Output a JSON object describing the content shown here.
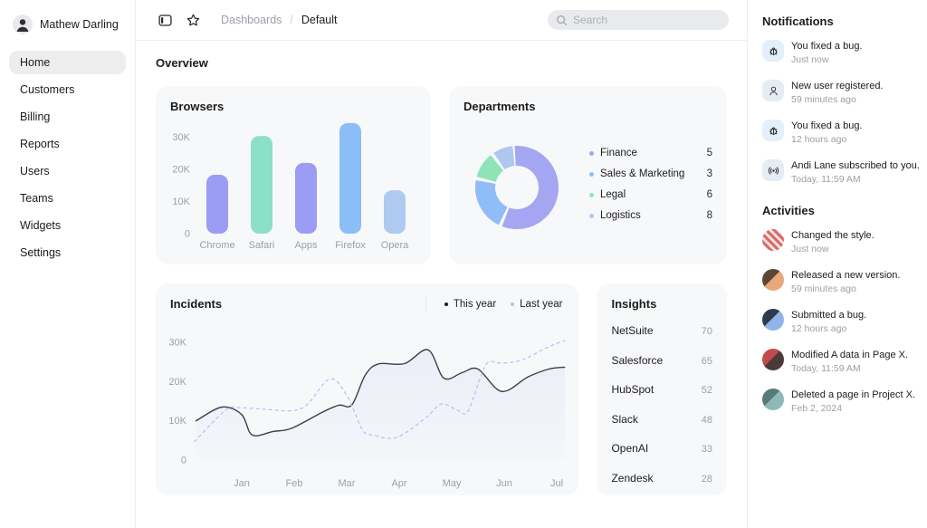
{
  "colors": {
    "card_bg": "#f7f8fa",
    "border": "#ececec",
    "text": "#1c1c1c",
    "muted": "#9aa0a8",
    "purple": "#9b9cf4",
    "mint": "#8be0c7",
    "blue": "#8bbdf6",
    "periwinkle": "#aecaf1"
  },
  "sidebar": {
    "user": {
      "name": "Mathew Darling"
    },
    "items": [
      {
        "label": "Home",
        "active": true
      },
      {
        "label": "Customers",
        "active": false
      },
      {
        "label": "Billing",
        "active": false
      },
      {
        "label": "Reports",
        "active": false
      },
      {
        "label": "Users",
        "active": false
      },
      {
        "label": "Teams",
        "active": false
      },
      {
        "label": "Widgets",
        "active": false
      },
      {
        "label": "Settings",
        "active": false
      }
    ]
  },
  "topbar": {
    "icons": [
      "sidebar-toggle-icon",
      "star-icon"
    ],
    "breadcrumb": {
      "parent": "Dashboards",
      "separator": "/",
      "current": "Default"
    },
    "search": {
      "placeholder": "Search",
      "icon": "search-icon"
    }
  },
  "overview_title": "Overview",
  "chart_data": [
    {
      "id": "browsers",
      "type": "bar",
      "title": "Browsers",
      "categories": [
        "Chrome",
        "Safari",
        "Apps",
        "Firefox",
        "Opera"
      ],
      "values": [
        18300,
        30400,
        22000,
        34400,
        13500
      ],
      "bar_colors": [
        "#9b9cf4",
        "#8be0c7",
        "#9b9cf4",
        "#8bbdf6",
        "#aecaf1"
      ],
      "yticks": [
        {
          "v": 0,
          "label": "0"
        },
        {
          "v": 10000,
          "label": "10K"
        },
        {
          "v": 20000,
          "label": "20K"
        },
        {
          "v": 30000,
          "label": "30K"
        }
      ],
      "ylim": [
        0,
        36000
      ],
      "grid": false,
      "xlabel": "",
      "ylabel": ""
    },
    {
      "id": "departments",
      "type": "donut",
      "title": "Departments",
      "slices": [
        {
          "label": "Finance",
          "value": 5,
          "color": "#a5a6f2",
          "start": -3,
          "sweep": 204
        },
        {
          "label": "Sales & Marketing",
          "value": 3,
          "color": "#90bdf8",
          "start": 206,
          "sweep": 74
        },
        {
          "label": "Legal",
          "value": 6,
          "color": "#8fe4b7",
          "start": 285,
          "sweep": 36
        },
        {
          "label": "Logistics",
          "value": 8,
          "color": "#aec7ee",
          "start": 326,
          "sweep": 28
        }
      ],
      "legend_position": "right"
    },
    {
      "id": "incidents",
      "type": "line",
      "title": "Incidents",
      "x_ticks": [
        "Jan",
        "Feb",
        "Mar",
        "Apr",
        "May",
        "Jun",
        "Jul"
      ],
      "x_domain": [
        0,
        7.15
      ],
      "yticks": [
        {
          "v": 0,
          "label": "0"
        },
        {
          "v": 10,
          "label": "10K"
        },
        {
          "v": 20,
          "label": "20K"
        },
        {
          "v": 30,
          "label": "30K"
        }
      ],
      "ylim": [
        0,
        33
      ],
      "unit": "K",
      "grid": false,
      "series": [
        {
          "name": "This year",
          "color": "#3f3f46",
          "dot_color": "#1c1c1c",
          "style": "solid",
          "area": true,
          "points": [
            [
              0.13,
              10.0
            ],
            [
              0.62,
              13.5
            ],
            [
              1.0,
              11.6
            ],
            [
              1.2,
              6.4
            ],
            [
              1.6,
              7.3
            ],
            [
              1.95,
              8.1
            ],
            [
              2.55,
              12.3
            ],
            [
              2.85,
              14.0
            ],
            [
              3.1,
              14.1
            ],
            [
              3.35,
              21.6
            ],
            [
              3.6,
              24.5
            ],
            [
              4.1,
              24.6
            ],
            [
              4.55,
              28.1
            ],
            [
              4.85,
              20.9
            ],
            [
              5.2,
              22.3
            ],
            [
              5.5,
              23.2
            ],
            [
              5.95,
              17.5
            ],
            [
              6.45,
              21.2
            ],
            [
              6.85,
              23.2
            ],
            [
              7.15,
              23.7
            ]
          ]
        },
        {
          "name": "Last year",
          "color": "#a7c4f8",
          "dot_color": "#a7c4f8",
          "style": "dashed",
          "area": false,
          "points": [
            [
              0.1,
              4.7
            ],
            [
              0.7,
              12.8
            ],
            [
              1.0,
              13.3
            ],
            [
              1.4,
              13.0
            ],
            [
              1.95,
              12.6
            ],
            [
              2.25,
              14.2
            ],
            [
              2.68,
              20.7
            ],
            [
              3.0,
              16.5
            ],
            [
              3.3,
              7.7
            ],
            [
              3.5,
              6.4
            ],
            [
              3.95,
              5.8
            ],
            [
              4.5,
              10.7
            ],
            [
              4.8,
              14.3
            ],
            [
              5.1,
              12.8
            ],
            [
              5.3,
              12.3
            ],
            [
              5.55,
              21.2
            ],
            [
              5.7,
              25.0
            ],
            [
              5.95,
              24.7
            ],
            [
              6.35,
              25.6
            ],
            [
              6.8,
              28.6
            ],
            [
              7.15,
              30.5
            ]
          ]
        }
      ]
    },
    {
      "id": "insights",
      "type": "table",
      "title": "Insights",
      "rows": [
        {
          "label": "NetSuite",
          "value": 70
        },
        {
          "label": "Salesforce",
          "value": 65
        },
        {
          "label": "HubSpot",
          "value": 52
        },
        {
          "label": "Slack",
          "value": 48
        },
        {
          "label": "OpenAI",
          "value": 33
        },
        {
          "label": "Zendesk",
          "value": 28
        }
      ]
    }
  ],
  "right_panel": {
    "notifications": {
      "title": "Notifications",
      "items": [
        {
          "icon": "bug-icon",
          "icon_bg": "#e3effb",
          "text": "You fixed a bug.",
          "time": "Just now"
        },
        {
          "icon": "user-icon",
          "icon_bg": "#e6ecf6",
          "text": "New user registered.",
          "time": "59 minutes ago"
        },
        {
          "icon": "bug-icon",
          "icon_bg": "#e3effb",
          "text": "You fixed a bug.",
          "time": "12 hours ago"
        },
        {
          "icon": "broadcast-icon",
          "icon_bg": "#e6ecf6",
          "text": "Andi Lane subscribed to you.",
          "time": "Today, 11:59 AM"
        }
      ]
    },
    "activities": {
      "title": "Activities",
      "items": [
        {
          "text": "Changed the style.",
          "time": "Just now",
          "avatar_colors": [
            "#d96c6c",
            "#f2e6e0"
          ]
        },
        {
          "text": "Released a new version.",
          "time": "59 minutes ago",
          "avatar_colors": [
            "#e8a87c",
            "#5a4632"
          ]
        },
        {
          "text": "Submitted a bug.",
          "time": "12 hours ago",
          "avatar_colors": [
            "#8fb4e8",
            "#2f3a4a"
          ]
        },
        {
          "text": "Modified A data in Page X.",
          "time": "Today, 11:59 AM",
          "avatar_colors": [
            "#4a3b38",
            "#c24b4b"
          ]
        },
        {
          "text": "Deleted a page in Project X.",
          "time": "Feb 2, 2024",
          "avatar_colors": [
            "#8fb8b8",
            "#5a7a7a"
          ]
        }
      ]
    }
  }
}
